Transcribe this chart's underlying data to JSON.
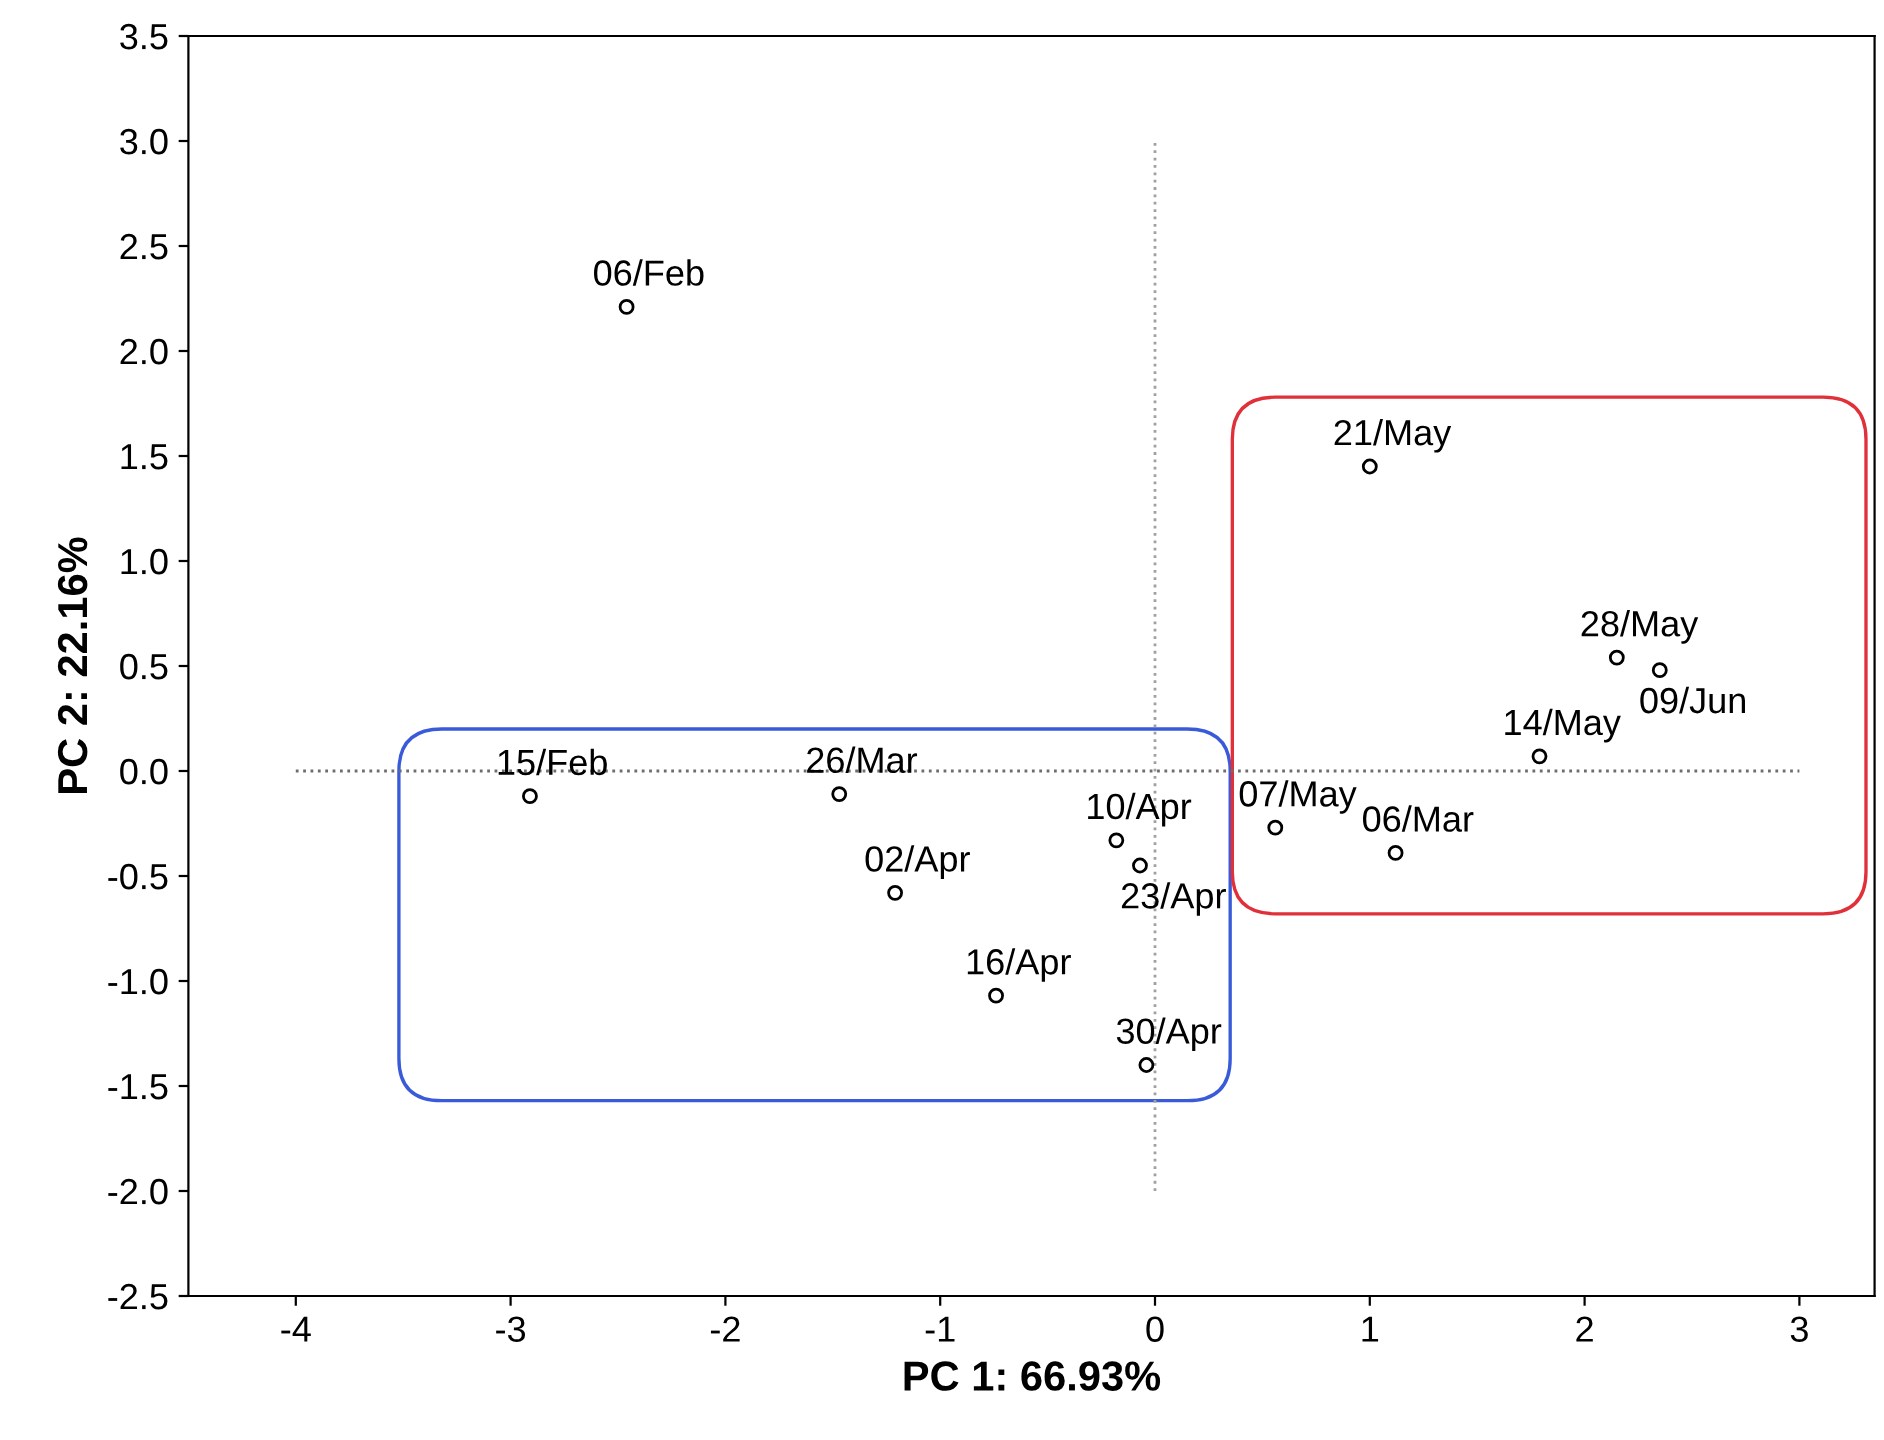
{
  "chart_data": {
    "type": "scatter",
    "xlabel": "PC 1: 66.93%",
    "ylabel": "PC 2: 22.16%",
    "series": [
      {
        "color": "#000000",
        "marker": "circle",
        "x": [
          -2.46,
          -2.91,
          -1.47,
          -1.21,
          -0.74,
          -0.18,
          -0.07,
          -0.04,
          0.56,
          1.12,
          1.0,
          1.79,
          2.15,
          2.35
        ],
        "values": [
          2.21,
          -0.12,
          -0.11,
          -0.58,
          -1.07,
          -0.33,
          -0.45,
          -1.4,
          -0.27,
          -0.39,
          1.45,
          0.07,
          0.54,
          0.48
        ]
      }
    ],
    "annotations": [
      {
        "text": "06/Feb",
        "x": -2.46,
        "y": 2.21
      },
      {
        "text": "15/Feb",
        "x": -2.91,
        "y": -0.12
      },
      {
        "text": "26/Mar",
        "x": -1.47,
        "y": -0.11
      },
      {
        "text": "02/Apr",
        "x": -1.21,
        "y": -0.58
      },
      {
        "text": "16/Apr",
        "x": -0.74,
        "y": -1.07
      },
      {
        "text": "10/Apr",
        "x": -0.18,
        "y": -0.33
      },
      {
        "text": "23/Apr",
        "x": -0.07,
        "y": -0.45
      },
      {
        "text": "30/Apr",
        "x": -0.04,
        "y": -1.4
      },
      {
        "text": "07/May",
        "x": 0.56,
        "y": -0.27
      },
      {
        "text": "06/Mar",
        "x": 1.12,
        "y": -0.39
      },
      {
        "text": "21/May",
        "x": 1.0,
        "y": 1.45
      },
      {
        "text": "14/May",
        "x": 1.79,
        "y": 0.07
      },
      {
        "text": "28/May",
        "x": 2.15,
        "y": 0.54
      },
      {
        "text": "09/Jun",
        "x": 2.35,
        "y": 0.48
      }
    ],
    "ref_lines": [
      {
        "axis": "y",
        "value": 0,
        "color": "#6e6e6e",
        "line_style": "dotted"
      },
      {
        "axis": "x",
        "value": 0,
        "color": "#a0a0a0",
        "line_style": "dotted"
      }
    ],
    "xlim": [
      -4.5,
      3.35
    ],
    "ylim": [
      -2.5,
      3.5
    ],
    "xticks": [
      -4,
      -3,
      -2,
      -1,
      0,
      1,
      2,
      3
    ],
    "yticks": [
      {
        "value": -2.5,
        "label": "-2.5"
      },
      {
        "value": -2.0,
        "label": "-2.0"
      },
      {
        "value": -1.5,
        "label": "-1.5"
      },
      {
        "value": -1.0,
        "label": "-1.0"
      },
      {
        "value": -0.5,
        "label": "-0.5"
      },
      {
        "value": 0.0,
        "label": "0.0"
      },
      {
        "value": 0.5,
        "label": "0.5"
      },
      {
        "value": 1.0,
        "label": "1.0"
      },
      {
        "value": 1.5,
        "label": "1.5"
      },
      {
        "value": 2.0,
        "label": "2.0"
      },
      {
        "value": 2.5,
        "label": "2.5"
      },
      {
        "value": 3.0,
        "label": "3.0"
      },
      {
        "value": 3.5,
        "label": "3.5"
      }
    ],
    "grid": false,
    "legend": false
  }
}
